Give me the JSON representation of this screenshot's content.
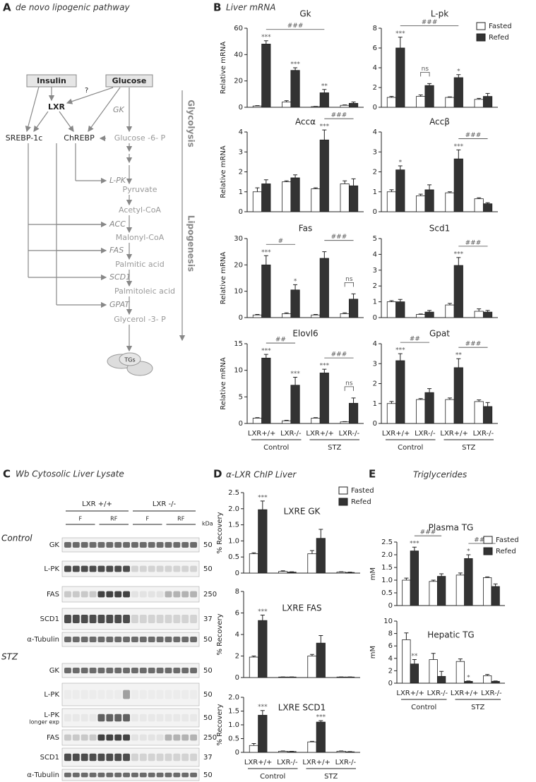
{
  "panels": {
    "A": {
      "letter": "A",
      "title": "de novo lipogenic pathway"
    },
    "B": {
      "letter": "B",
      "title": "Liver mRNA"
    },
    "C": {
      "letter": "C",
      "title": "Wb Cytosolic Liver Lysate"
    },
    "D": {
      "letter": "D",
      "title": "α-LXR ChIP Liver"
    },
    "E": {
      "letter": "E",
      "title": "Triglycerides"
    }
  },
  "pathway": {
    "insulin": "Insulin",
    "glucose": "Glucose",
    "question": "?",
    "lxr": "LXR",
    "srebp": "SREBP-1c",
    "chrebp": "ChREBP",
    "gk": "GK",
    "g6p": "Glucose -6- P",
    "lpk": "L-PK",
    "pyruvate": "Pyruvate",
    "acetyl": "Acetyl-CoA",
    "acc": "ACC",
    "malonyl": "Malonyl-CoA",
    "fas": "FAS",
    "palmitic": "Palmitic acid",
    "scd1": "SCD1",
    "palmitoleic": "Palmitoleic acid",
    "gpat": "GPAT",
    "g3p": "Glycerol -3- P",
    "tgs": "TGs",
    "glycolysis": "Glycolysis",
    "lipogenesis": "Lipogenesis"
  },
  "chart_data": [
    {
      "type": "bar",
      "title": "Gk",
      "ylabel": "Relative mRNA",
      "ylim": [
        0,
        60
      ],
      "yticks": [
        0,
        20,
        40,
        60
      ],
      "series": [
        {
          "color": "#ffffff",
          "values": [
            1,
            4,
            0.5,
            1.5
          ],
          "errors": [
            0.3,
            1,
            0.2,
            0.3
          ]
        },
        {
          "color": "#333333",
          "values": [
            48,
            28,
            11,
            3
          ],
          "errors": [
            2.5,
            2,
            2.5,
            1
          ],
          "stars": [
            "***",
            "***",
            "**",
            null
          ]
        }
      ],
      "brackets": [
        {
          "label": "###",
          "from": 1,
          "to": 5
        }
      ]
    },
    {
      "type": "bar",
      "title": "L-pk",
      "legend": "top-right",
      "ylim": [
        0,
        8
      ],
      "yticks": [
        0,
        2,
        4,
        6,
        8
      ],
      "series": [
        {
          "name": "Fasted",
          "color": "#ffffff",
          "values": [
            1,
            1.1,
            1,
            0.8
          ],
          "errors": [
            0.1,
            0.15,
            0.05,
            0.1
          ]
        },
        {
          "name": "Refed",
          "color": "#333333",
          "values": [
            6,
            2.2,
            3,
            1.1
          ],
          "errors": [
            1.1,
            0.2,
            0.3,
            0.3
          ],
          "stars": [
            "***",
            null,
            "*",
            null
          ]
        }
      ],
      "brackets": [
        {
          "label": "###",
          "from": 1,
          "to": 5
        },
        {
          "label": "ns",
          "from": 2,
          "to": 3
        }
      ]
    },
    {
      "type": "bar",
      "title": "Accα",
      "ylabel": "Relative mRNA",
      "ylim": [
        0,
        4
      ],
      "yticks": [
        0,
        1,
        2,
        3,
        4
      ],
      "series": [
        {
          "color": "#ffffff",
          "values": [
            1,
            1.5,
            1.15,
            1.4
          ],
          "errors": [
            0.2,
            0.05,
            0.05,
            0.15
          ]
        },
        {
          "color": "#333333",
          "values": [
            1.4,
            1.7,
            3.6,
            1.3
          ],
          "errors": [
            0.2,
            0.15,
            0.5,
            0.35
          ],
          "stars": [
            null,
            null,
            "***",
            null
          ]
        }
      ],
      "brackets": [
        {
          "label": "###",
          "from": 5,
          "to": 7
        }
      ]
    },
    {
      "type": "bar",
      "title": "Accβ",
      "ylim": [
        0,
        4
      ],
      "yticks": [
        0,
        1,
        2,
        3,
        4
      ],
      "series": [
        {
          "color": "#ffffff",
          "values": [
            1,
            0.8,
            0.95,
            0.65
          ],
          "errors": [
            0.1,
            0.08,
            0.05,
            0.05
          ]
        },
        {
          "color": "#333333",
          "values": [
            2.1,
            1.1,
            2.65,
            0.4
          ],
          "errors": [
            0.2,
            0.25,
            0.45,
            0.05
          ],
          "stars": [
            "*",
            null,
            "***",
            null
          ]
        }
      ],
      "brackets": [
        {
          "label": "###",
          "from": 5,
          "to": 7
        }
      ]
    },
    {
      "type": "bar",
      "title": "Fas",
      "ylabel": "Relative mRNA",
      "ylim": [
        0,
        30
      ],
      "yticks": [
        0,
        10,
        20,
        30
      ],
      "series": [
        {
          "color": "#ffffff",
          "values": [
            1,
            1.5,
            1,
            1.5
          ],
          "errors": [
            0.2,
            0.3,
            0.2,
            0.3
          ]
        },
        {
          "color": "#333333",
          "values": [
            20,
            10.5,
            22.5,
            7
          ],
          "errors": [
            3.5,
            2,
            2.5,
            2
          ],
          "stars": [
            "***",
            "*",
            null,
            null
          ]
        }
      ],
      "brackets": [
        {
          "label": "#",
          "from": 1,
          "to": 3
        },
        {
          "label": "###",
          "from": 5,
          "to": 7
        },
        {
          "label": "ns",
          "from": 6,
          "to": 7
        }
      ]
    },
    {
      "type": "bar",
      "title": "Scd1",
      "ylim": [
        0,
        5
      ],
      "yticks": [
        0,
        1,
        2,
        3,
        4,
        5
      ],
      "series": [
        {
          "color": "#ffffff",
          "values": [
            1,
            0.2,
            0.8,
            0.4
          ],
          "errors": [
            0.07,
            0.03,
            0.1,
            0.15
          ]
        },
        {
          "color": "#333333",
          "values": [
            1,
            0.35,
            3.3,
            0.35
          ],
          "errors": [
            0.15,
            0.1,
            0.5,
            0.1
          ],
          "stars": [
            null,
            null,
            "***",
            null
          ]
        }
      ],
      "brackets": [
        {
          "label": "###",
          "from": 5,
          "to": 7
        }
      ]
    },
    {
      "type": "bar",
      "title": "Elovl6",
      "ylabel": "Relative mRNA",
      "ylim": [
        0,
        15
      ],
      "yticks": [
        0,
        5,
        10,
        15
      ],
      "categories": [
        "LXR+/+",
        "LXR-/-",
        "LXR+/+",
        "LXR-/-"
      ],
      "groups": [
        "Control",
        "STZ"
      ],
      "series": [
        {
          "color": "#ffffff",
          "values": [
            1,
            0.5,
            1,
            0.3
          ],
          "errors": [
            0.1,
            0.1,
            0.1,
            0.05
          ]
        },
        {
          "color": "#333333",
          "values": [
            12.3,
            7.2,
            9.5,
            3.8
          ],
          "errors": [
            0.7,
            1.5,
            0.7,
            1
          ],
          "stars": [
            "***",
            "***",
            "***",
            null
          ]
        }
      ],
      "brackets": [
        {
          "label": "##",
          "from": 1,
          "to": 3
        },
        {
          "label": "###",
          "from": 5,
          "to": 7
        },
        {
          "label": "ns",
          "from": 6,
          "to": 7
        }
      ]
    },
    {
      "type": "bar",
      "title": "Gpat",
      "ylim": [
        0,
        4
      ],
      "yticks": [
        0,
        1,
        2,
        3,
        4
      ],
      "categories": [
        "LXR+/+",
        "LXR-/-",
        "LXR+/+",
        "LXR-/-"
      ],
      "groups": [
        "Control",
        "STZ"
      ],
      "series": [
        {
          "color": "#ffffff",
          "values": [
            1,
            1.2,
            1.2,
            1.1
          ],
          "errors": [
            0.1,
            0.05,
            0.08,
            0.08
          ]
        },
        {
          "color": "#333333",
          "values": [
            3.15,
            1.55,
            2.8,
            0.85
          ],
          "errors": [
            0.35,
            0.2,
            0.45,
            0.2
          ],
          "stars": [
            "***",
            null,
            "**",
            null
          ]
        }
      ],
      "brackets": [
        {
          "label": "##",
          "from": 1,
          "to": 3
        },
        {
          "label": "###",
          "from": 5,
          "to": 7
        }
      ]
    },
    {
      "type": "bar",
      "title": "LXRE GK",
      "ylabel": "% Recovery",
      "legend": "top-right",
      "ylim": [
        0,
        2.5
      ],
      "yticks": [
        0,
        0.5,
        {
          "value": 1,
          "label": "1.0"
        },
        1.5,
        {
          "value": 2,
          "label": "2.0"
        },
        2.5
      ],
      "series": [
        {
          "name": "Fasted",
          "color": "#ffffff",
          "values": [
            0.6,
            0.05,
            0.6,
            0.03
          ],
          "errors": [
            0.03,
            0.02,
            0.1,
            0.01
          ]
        },
        {
          "name": "Refed",
          "color": "#333333",
          "values": [
            1.97,
            0.03,
            1.08,
            0.02
          ],
          "errors": [
            0.27,
            0.01,
            0.28,
            0.01
          ],
          "stars": [
            "***",
            null,
            null,
            null
          ]
        }
      ]
    },
    {
      "type": "bar",
      "title": "LXRE FAS",
      "ylabel": "% Recovery",
      "ylim": [
        0,
        8
      ],
      "yticks": [
        0,
        2,
        4,
        6,
        8
      ],
      "series": [
        {
          "color": "#ffffff",
          "values": [
            1.9,
            0.05,
            2,
            0.05
          ],
          "errors": [
            0.1,
            0.01,
            0.15,
            0.01
          ]
        },
        {
          "color": "#333333",
          "values": [
            5.3,
            0.05,
            3.2,
            0.05
          ],
          "errors": [
            0.5,
            0.01,
            0.7,
            0.01
          ],
          "stars": [
            "***",
            null,
            null,
            null
          ]
        }
      ]
    },
    {
      "type": "bar",
      "title": "LXRE SCD1",
      "ylabel": "% Recovery",
      "ylim": [
        0,
        2
      ],
      "yticks": [
        0,
        0.5,
        {
          "value": 1,
          "label": "1.0"
        },
        1.5,
        {
          "value": 2,
          "label": "2.0"
        }
      ],
      "categories": [
        "LXR+/+",
        "LXR-/-",
        "LXR+/+",
        "LXR-/-"
      ],
      "groups": [
        "Control",
        "STZ"
      ],
      "series": [
        {
          "color": "#ffffff",
          "values": [
            0.25,
            0.04,
            0.38,
            0.04
          ],
          "errors": [
            0.07,
            0.01,
            0.02,
            0.01
          ]
        },
        {
          "color": "#333333",
          "values": [
            1.35,
            0.03,
            1.1,
            0.02
          ],
          "errors": [
            0.17,
            0.01,
            0.05,
            0.01
          ],
          "stars": [
            "***",
            null,
            "***",
            null
          ]
        }
      ]
    },
    {
      "type": "bar",
      "title": "Plasma TG",
      "ylabel": "mM",
      "legend": "top-right",
      "ylim": [
        0,
        2.5
      ],
      "yticks": [
        0,
        0.5,
        {
          "value": 1,
          "label": "1.0"
        },
        1.5,
        {
          "value": 2,
          "label": "2.0"
        },
        2.5
      ],
      "series": [
        {
          "name": "Fasted",
          "color": "#ffffff",
          "values": [
            1,
            0.95,
            1.2,
            1.1
          ],
          "errors": [
            0.08,
            0.05,
            0.08,
            0.03
          ]
        },
        {
          "name": "Refed",
          "color": "#333333",
          "values": [
            2.15,
            1.15,
            1.85,
            0.75
          ],
          "errors": [
            0.15,
            0.1,
            0.15,
            0.1
          ],
          "stars": [
            "***",
            null,
            "*",
            null
          ]
        }
      ],
      "brackets": [
        {
          "label": "###",
          "from": 1,
          "to": 3
        },
        {
          "label": "###",
          "from": 5,
          "to": 7
        }
      ]
    },
    {
      "type": "bar",
      "title": "Hepatic TG",
      "ylabel": "mM",
      "ylim": [
        0,
        10
      ],
      "yticks": [
        0,
        2,
        4,
        6,
        8,
        10
      ],
      "categories": [
        "LXR+/+",
        "LXR-/-",
        "LXR+/+",
        "LXR-/-"
      ],
      "groups": [
        "Control",
        "STZ"
      ],
      "series": [
        {
          "color": "#ffffff",
          "values": [
            7,
            3.8,
            3.5,
            1.2
          ],
          "errors": [
            1.1,
            1,
            0.4,
            0.2
          ]
        },
        {
          "color": "#333333",
          "values": [
            3.1,
            1.1,
            0.3,
            0.3
          ],
          "errors": [
            0.7,
            0.8,
            0.05,
            0.05
          ],
          "stars": [
            "**",
            null,
            "*",
            null
          ]
        }
      ]
    }
  ],
  "blot": {
    "genotypes": [
      "LXR +/+",
      "LXR -/-"
    ],
    "conditions": [
      "F",
      "RF",
      "F",
      "RF"
    ],
    "kda_label": "kDa",
    "sections": [
      {
        "label": "Control",
        "rows": [
          {
            "label": "GK",
            "kda": 50
          },
          {
            "label": "L-PK",
            "kda": 50
          },
          {
            "label": "FAS",
            "kda": 250
          },
          {
            "label": "SCD1",
            "kda": 37
          },
          {
            "label": "α-Tubulin",
            "kda": 50
          }
        ]
      },
      {
        "label": "STZ",
        "rows": [
          {
            "label": "GK",
            "kda": 50
          },
          {
            "label": "L-PK",
            "kda": 50
          },
          {
            "label": "L-PK",
            "note": "longer exp",
            "kda": 50
          },
          {
            "label": "FAS",
            "kda": 250
          },
          {
            "label": "SCD1",
            "kda": 37
          },
          {
            "label": "α-Tubulin",
            "kda": 50
          }
        ]
      }
    ]
  }
}
